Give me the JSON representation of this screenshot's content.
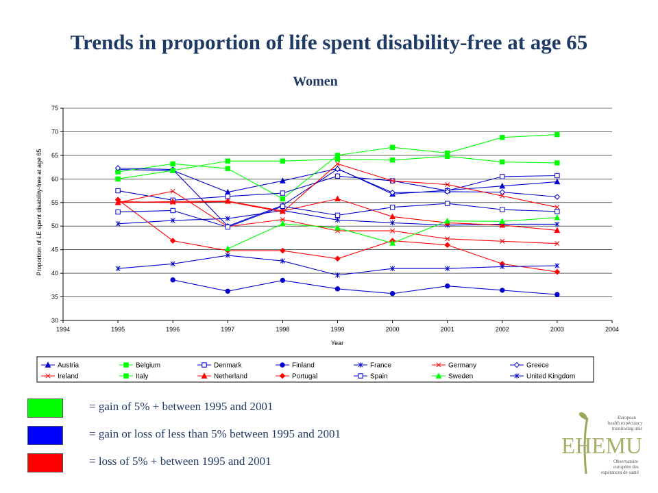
{
  "page": {
    "title": "Trends in proportion of life spent disability-free at age 65",
    "subtitle": "Women"
  },
  "chart_data": {
    "type": "line",
    "ylabel": "Proportion of LE spent disability-free at age 65",
    "xlabel": "Year",
    "xlim": [
      1994,
      2004
    ],
    "ylim": [
      30,
      75
    ],
    "xticks": [
      "1994",
      "1995",
      "1996",
      "1997",
      "1998",
      "1999",
      "2000",
      "2001",
      "2002",
      "2003",
      "2004"
    ],
    "yticks": [
      "30",
      "35",
      "40",
      "45",
      "50",
      "55",
      "60",
      "65",
      "70",
      "75"
    ],
    "grid": "horizontal",
    "legend_position": "bottom",
    "series": [
      {
        "name": "Austria",
        "color": "#0000cc",
        "marker": "triangle-filled",
        "x": [
          1995,
          1996,
          1997,
          1998,
          1999,
          2000,
          2001,
          2002,
          2003
        ],
        "y": [
          62.0,
          61.8,
          57.2,
          59.6,
          62.2,
          56.8,
          57.6,
          58.5,
          59.4
        ]
      },
      {
        "name": "Belgium",
        "color": "#00ff00",
        "marker": "square-filled",
        "x": [
          1995,
          1996,
          1997,
          1998,
          1999,
          2000,
          2001,
          2002,
          2003
        ],
        "y": [
          61.5,
          63.2,
          62.2,
          55.8,
          65.0,
          66.7,
          65.5,
          68.8,
          69.4
        ]
      },
      {
        "name": "Denmark",
        "color": "#0000cc",
        "marker": "square-open",
        "x": [
          1995,
          1996,
          1997,
          1998,
          1999,
          2000,
          2001,
          2002,
          2003
        ],
        "y": [
          57.5,
          55.5,
          56.3,
          57.0,
          60.6,
          59.6,
          57.5,
          60.5,
          60.7
        ]
      },
      {
        "name": "Finland",
        "color": "#0000cc",
        "marker": "circle-filled",
        "x": [
          1996,
          1997,
          1998,
          1999,
          2000,
          2001,
          2002,
          2003
        ],
        "y": [
          38.6,
          36.2,
          38.5,
          36.7,
          35.7,
          37.3,
          36.4,
          35.5
        ]
      },
      {
        "name": "France",
        "color": "#0000cc",
        "marker": "star",
        "x": [
          1995,
          1996,
          1997,
          1998,
          1999,
          2000,
          2001,
          2002,
          2003
        ],
        "y": [
          50.5,
          51.2,
          51.6,
          53.3,
          51.3,
          50.7,
          50.2,
          50.4,
          50.4
        ]
      },
      {
        "name": "Germany",
        "color": "#ff0000",
        "marker": "x",
        "x": [
          1995,
          1996,
          1997,
          1998,
          1999,
          2000,
          2001,
          2002,
          2003
        ],
        "y": [
          55.0,
          57.4,
          49.9,
          51.4,
          49.0,
          49.0,
          47.3,
          46.8,
          46.3
        ]
      },
      {
        "name": "Greece",
        "color": "#0000cc",
        "marker": "diamond-open",
        "x": [
          1995,
          1996,
          1997,
          1998,
          1999,
          2000,
          2001,
          2002,
          2003
        ],
        "y": [
          62.3,
          62.0,
          50.0,
          54.4,
          62.1,
          57.1,
          57.3,
          57.2,
          56.2
        ]
      },
      {
        "name": "Ireland",
        "color": "#ff0000",
        "marker": "x",
        "x": [
          1995,
          1996,
          1997,
          1998,
          1999,
          2000,
          2001,
          2002,
          2003
        ],
        "y": [
          55.2,
          55.0,
          55.2,
          53.0,
          63.2,
          59.6,
          58.8,
          56.4,
          54.0
        ]
      },
      {
        "name": "Italy",
        "color": "#00ff00",
        "marker": "square-filled",
        "x": [
          1995,
          1996,
          1997,
          1998,
          1999,
          2000,
          2001,
          2002,
          2003
        ],
        "y": [
          60.0,
          61.8,
          63.8,
          63.8,
          64.2,
          64.0,
          64.8,
          63.6,
          63.4
        ]
      },
      {
        "name": "Netherland",
        "color": "#ff0000",
        "marker": "triangle-filled",
        "x": [
          1995,
          1996,
          1997,
          1998,
          1999,
          2000,
          2001,
          2002,
          2003
        ],
        "y": [
          55.0,
          55.2,
          55.3,
          53.2,
          55.8,
          52.0,
          50.7,
          50.2,
          49.1
        ]
      },
      {
        "name": "Portugal",
        "color": "#ff0000",
        "marker": "diamond-filled",
        "x": [
          1995,
          1996,
          1997,
          1998,
          1999,
          2000,
          2001,
          2002,
          2003
        ],
        "y": [
          55.6,
          46.9,
          44.8,
          44.8,
          43.1,
          46.9,
          46.0,
          42.0,
          40.3
        ]
      },
      {
        "name": "Spain",
        "color": "#0000cc",
        "marker": "square-open",
        "x": [
          1995,
          1996,
          1997,
          1998,
          1999,
          2000,
          2001,
          2002,
          2003
        ],
        "y": [
          53.0,
          53.3,
          49.8,
          54.2,
          52.3,
          54.0,
          54.8,
          53.5,
          53.1
        ]
      },
      {
        "name": "Sweden",
        "color": "#00ff00",
        "marker": "triangle-filled",
        "x": [
          1997,
          1998,
          1999,
          2000,
          2001,
          2002,
          2003
        ],
        "y": [
          45.2,
          50.5,
          49.6,
          46.4,
          51.1,
          51.0,
          51.8
        ]
      },
      {
        "name": "United Kingdom",
        "color": "#0000cc",
        "marker": "star",
        "x": [
          1995,
          1996,
          1997,
          1998,
          1999,
          2000,
          2001,
          2002,
          2003
        ],
        "y": [
          41.0,
          42.0,
          43.8,
          42.6,
          39.6,
          41.0,
          41.0,
          41.4,
          41.6
        ]
      }
    ]
  },
  "key": {
    "items": [
      {
        "color": "#00ff00",
        "label": "= gain of 5% + between 1995 and 2001"
      },
      {
        "color": "#0000ff",
        "label": "= gain or loss of less than 5% between 1995 and 2001"
      },
      {
        "color": "#ff0000",
        "label": "= loss of 5% + between 1995 and 2001"
      }
    ]
  },
  "logo": {
    "wordmark": "EHEMU",
    "text_en": [
      "European",
      "health expectancy",
      "monitoring unit"
    ],
    "text_fr": [
      "Observatoire",
      "européen des",
      "espérances de santé"
    ]
  }
}
